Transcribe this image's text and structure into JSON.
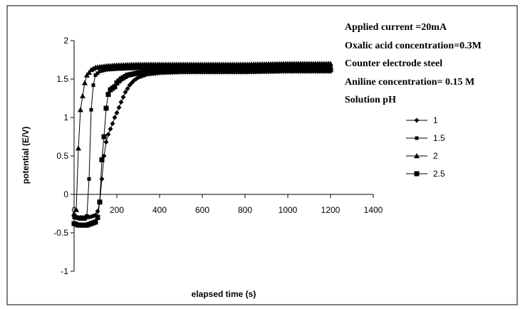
{
  "chart_data": {
    "type": "line",
    "title": "",
    "xlabel": "elapsed time (s)",
    "ylabel": "potential (E/V)",
    "xlim": [
      0,
      1400
    ],
    "ylim": [
      -1,
      2
    ],
    "x_ticks": [
      0,
      200,
      400,
      600,
      800,
      1000,
      1200,
      1400
    ],
    "y_ticks": [
      -1,
      -0.5,
      0,
      0.5,
      1,
      1.5,
      2
    ],
    "x_tick_labels": [
      "0",
      "200",
      "400",
      "600",
      "800",
      "1000",
      "1200",
      "1400"
    ],
    "y_tick_labels": [
      "-1",
      "-0.5",
      "0",
      "0.5",
      "1",
      "1.5",
      "2"
    ],
    "grid": false,
    "legend_position": "right",
    "legend_title": "Solution pH",
    "annotations": [
      "Applied current =20mA",
      "Oxalic acid concentration=0.3M",
      "Counter electrode steel",
      "Aniline concentration= 0.15 M"
    ],
    "series": [
      {
        "name": "1",
        "marker": "diamond",
        "points": [
          [
            0,
            -0.28
          ],
          [
            20,
            -0.3
          ],
          [
            40,
            -0.3
          ],
          [
            60,
            -0.3
          ],
          [
            80,
            -0.29
          ],
          [
            100,
            -0.27
          ],
          [
            110,
            -0.22
          ],
          [
            120,
            -0.1
          ],
          [
            130,
            0.2
          ],
          [
            140,
            0.5
          ],
          [
            150,
            0.68
          ],
          [
            160,
            0.78
          ],
          [
            170,
            0.85
          ],
          [
            180,
            0.92
          ],
          [
            190,
            1.0
          ],
          [
            200,
            1.06
          ],
          [
            220,
            1.2
          ],
          [
            240,
            1.33
          ],
          [
            260,
            1.42
          ],
          [
            280,
            1.48
          ],
          [
            300,
            1.52
          ],
          [
            340,
            1.56
          ],
          [
            400,
            1.58
          ],
          [
            500,
            1.59
          ],
          [
            600,
            1.59
          ],
          [
            800,
            1.59
          ],
          [
            1000,
            1.6
          ],
          [
            1200,
            1.6
          ]
        ]
      },
      {
        "name": "1.5",
        "marker": "square-small",
        "points": [
          [
            0,
            -0.3
          ],
          [
            30,
            -0.32
          ],
          [
            50,
            -0.32
          ],
          [
            60,
            -0.28
          ],
          [
            70,
            0.2
          ],
          [
            80,
            1.1
          ],
          [
            90,
            1.42
          ],
          [
            100,
            1.55
          ],
          [
            120,
            1.6
          ],
          [
            150,
            1.62
          ],
          [
            200,
            1.63
          ],
          [
            300,
            1.64
          ],
          [
            500,
            1.65
          ],
          [
            800,
            1.65
          ],
          [
            1000,
            1.65
          ],
          [
            1200,
            1.65
          ]
        ]
      },
      {
        "name": "2",
        "marker": "triangle",
        "points": [
          [
            0,
            -0.25
          ],
          [
            10,
            -0.2
          ],
          [
            20,
            0.6
          ],
          [
            30,
            1.1
          ],
          [
            40,
            1.28
          ],
          [
            50,
            1.45
          ],
          [
            60,
            1.55
          ],
          [
            80,
            1.62
          ],
          [
            100,
            1.65
          ],
          [
            150,
            1.67
          ],
          [
            200,
            1.68
          ],
          [
            300,
            1.69
          ],
          [
            500,
            1.69
          ],
          [
            800,
            1.69
          ],
          [
            1000,
            1.7
          ],
          [
            1200,
            1.7
          ]
        ]
      },
      {
        "name": "2.5",
        "marker": "square",
        "points": [
          [
            0,
            -0.38
          ],
          [
            20,
            -0.4
          ],
          [
            40,
            -0.4
          ],
          [
            60,
            -0.4
          ],
          [
            80,
            -0.38
          ],
          [
            100,
            -0.36
          ],
          [
            110,
            -0.3
          ],
          [
            120,
            -0.1
          ],
          [
            130,
            0.45
          ],
          [
            140,
            0.75
          ],
          [
            150,
            1.12
          ],
          [
            160,
            1.3
          ],
          [
            170,
            1.36
          ],
          [
            180,
            1.38
          ],
          [
            190,
            1.4
          ],
          [
            200,
            1.45
          ],
          [
            220,
            1.5
          ],
          [
            250,
            1.55
          ],
          [
            300,
            1.58
          ],
          [
            400,
            1.6
          ],
          [
            600,
            1.61
          ],
          [
            800,
            1.61
          ],
          [
            1000,
            1.62
          ],
          [
            1200,
            1.62
          ]
        ]
      }
    ]
  }
}
